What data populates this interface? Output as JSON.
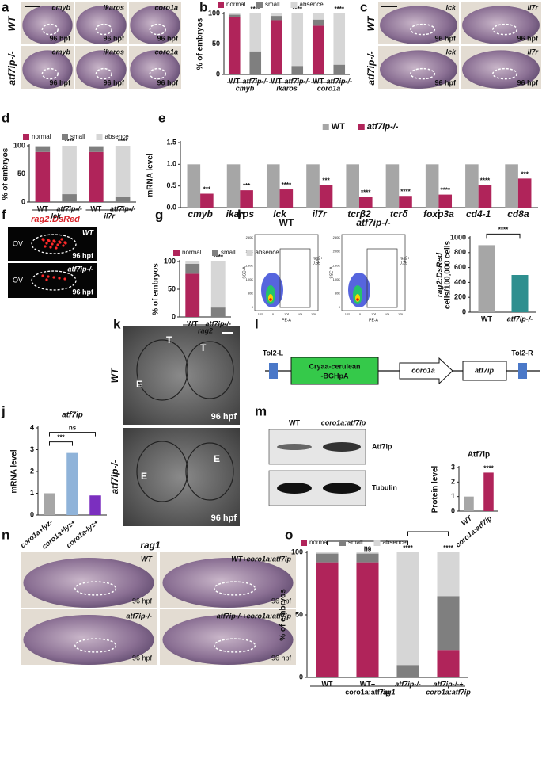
{
  "panels": {
    "a": {
      "label": "a",
      "rows": [
        "WT",
        "atf7ip-/-"
      ],
      "genes": [
        "cmyb",
        "ikaros",
        "coro1a"
      ],
      "stage": "96 hpf"
    },
    "c": {
      "label": "c",
      "rows": [
        "WT",
        "atf7ip-/-"
      ],
      "genes": [
        "lck",
        "il7r"
      ],
      "stage": "96 hpf"
    },
    "f": {
      "label": "f",
      "title": "rag2:DsRed",
      "rows": [
        "WT",
        "atf7ip-/-"
      ],
      "region": "OV",
      "stage": "96 hpf"
    },
    "h": {
      "label": "h",
      "plots": [
        "WT",
        "atf7ip-/-"
      ],
      "gate": "rag2+",
      "gate_values": [
        "0.55",
        "0.29"
      ],
      "ylabel": "SSC-A",
      "xlabel": "PE-A",
      "yticks": [
        "250K",
        "200K",
        "150K",
        "100K",
        "50K",
        "0"
      ],
      "xticks": [
        "-10³",
        "0",
        "10³",
        "10⁴",
        "10⁵"
      ]
    },
    "k": {
      "label": "k",
      "rows": [
        "WT",
        "atf7ip-/-"
      ],
      "top_marks": [
        "T",
        "T",
        "E"
      ],
      "bottom_marks": [
        "E",
        "E"
      ],
      "stage": "96 hpf"
    },
    "l": {
      "label": "l",
      "elements": [
        "Tol2-L",
        "Cryaa-cerulean",
        "-BGHpA",
        "coro1a",
        "atf7ip",
        "Tol2-R"
      ]
    },
    "m": {
      "label": "m",
      "lanes": [
        "WT",
        "coro1a:atf7ip"
      ],
      "bands": [
        "Atf7ip",
        "Tubulin"
      ]
    },
    "n": {
      "label": "n",
      "title": "rag1",
      "conditions": [
        "WT",
        "WT+coro1a:atf7ip",
        "atf7ip-/-",
        "atf7ip-/-+coro1a:atf7ip"
      ],
      "stage": "96 hpf"
    }
  },
  "chart_data": [
    {
      "type": "bar",
      "label": "b",
      "stacked": true,
      "legend": "top",
      "ylabel": "% of embryos",
      "ylim": [
        0,
        100
      ],
      "yticks": [
        0,
        50,
        100
      ],
      "categories": [
        "WT",
        "atf7ip-/-",
        "WT",
        "atf7ip-/-",
        "WT",
        "atf7ip-/-"
      ],
      "groups": [
        "cmyb",
        "ikaros",
        "coro1a"
      ],
      "series": [
        {
          "name": "normal",
          "color": "#b0245a",
          "values": [
            94,
            0,
            89,
            0,
            80,
            0
          ]
        },
        {
          "name": "small",
          "color": "#7f7f7f",
          "values": [
            4,
            38,
            7,
            14,
            10,
            16
          ],
          "annotations": [
            null,
            "****",
            null,
            "ns",
            null,
            "ns"
          ]
        },
        {
          "name": "absence",
          "color": "#d6d6d6",
          "values": [
            2,
            62,
            4,
            86,
            10,
            84
          ],
          "annotations": [
            null,
            "****",
            null,
            "****",
            null,
            "****"
          ]
        }
      ]
    },
    {
      "type": "bar",
      "label": "d",
      "stacked": true,
      "legend": "top",
      "ylabel": "% of embryos",
      "ylim": [
        0,
        100
      ],
      "yticks": [
        0,
        50,
        100
      ],
      "categories": [
        "WT",
        "atf7ip-/-",
        "WT",
        "atf7ip-/-"
      ],
      "groups": [
        "lck",
        "il7r"
      ],
      "series": [
        {
          "name": "normal",
          "color": "#b0245a",
          "values": [
            89,
            0,
            89,
            0
          ]
        },
        {
          "name": "small",
          "color": "#7f7f7f",
          "values": [
            10,
            14,
            10,
            9
          ],
          "annotations": [
            null,
            "ns",
            null,
            "ns"
          ]
        },
        {
          "name": "absence",
          "color": "#d6d6d6",
          "values": [
            1,
            86,
            1,
            91
          ],
          "annotations": [
            null,
            "****",
            null,
            "****"
          ]
        }
      ]
    },
    {
      "type": "bar",
      "label": "e",
      "legend": "top",
      "ylabel": "mRNA level",
      "ylim": [
        0,
        1.5
      ],
      "yticks": [
        {
          "value": 0,
          "label": "0.0"
        },
        0.5,
        {
          "value": 1,
          "label": "1.0"
        },
        1.5
      ],
      "categories": [
        "cmyb",
        "ikaros",
        "lck",
        "il7r",
        "tcrβ2",
        "tcrδ",
        "foxp3a",
        "cd4-1",
        "cd8a"
      ],
      "series": [
        {
          "name": "WT",
          "color": "#a6a6a6",
          "values": [
            1,
            1,
            1,
            1,
            1,
            1,
            1,
            1,
            1
          ]
        },
        {
          "name": "atf7ip-/-",
          "color": "#b0245a",
          "values": [
            0.32,
            0.4,
            0.42,
            0.52,
            0.25,
            0.27,
            0.3,
            0.52,
            0.67
          ],
          "annotations": [
            "***",
            "***",
            "****",
            "***",
            "****",
            "****",
            "****",
            "****",
            "***"
          ]
        }
      ]
    },
    {
      "type": "bar",
      "label": "g",
      "stacked": true,
      "legend": "top",
      "ylabel": "% of embryos",
      "ylim": [
        0,
        100
      ],
      "yticks": [
        0,
        50,
        100
      ],
      "categories": [
        "WT",
        "atf7ip-/-"
      ],
      "groups": [
        "rag2"
      ],
      "series": [
        {
          "name": "normal",
          "color": "#b0245a",
          "values": [
            78,
            0
          ]
        },
        {
          "name": "small",
          "color": "#7f7f7f",
          "values": [
            18,
            17
          ],
          "annotations": [
            null,
            "ns"
          ]
        },
        {
          "name": "absence",
          "color": "#d6d6d6",
          "values": [
            4,
            83
          ],
          "annotations": [
            null,
            "****"
          ]
        }
      ]
    },
    {
      "type": "bar",
      "label": "i",
      "ylabel": [
        "rag2:DsRed",
        "cells/100,000 cells"
      ],
      "ylim": [
        0,
        1000
      ],
      "yticks": [
        0,
        200,
        400,
        600,
        800,
        1000
      ],
      "categories": [
        "WT",
        "atf7ip-/-"
      ],
      "comparisons": [
        {
          "pair": [
            0,
            1
          ],
          "text": "****"
        }
      ],
      "series": [
        {
          "colors": [
            "#a6a6a6",
            "#2e8f8f"
          ],
          "values": [
            900,
            500
          ]
        }
      ]
    },
    {
      "type": "bar",
      "label": "j",
      "title": "atf7ip",
      "ylabel": "mRNA level",
      "ylim": [
        0,
        4
      ],
      "yticks": [
        0,
        1,
        2,
        3,
        4
      ],
      "categories": [
        "coro1a+lyz-",
        "coro1a+lyz+",
        "coro1a-lyz+"
      ],
      "comparisons": [
        {
          "pair": [
            0,
            1
          ],
          "text": "***"
        },
        {
          "pair": [
            0,
            2
          ],
          "text": "ns"
        }
      ],
      "series": [
        {
          "colors": [
            "#a6a6a6",
            "#8fb3d9",
            "#7b2fbf"
          ],
          "values": [
            1,
            2.85,
            0.9
          ]
        }
      ]
    },
    {
      "type": "bar",
      "label": "m",
      "title": "Atf7ip",
      "ylabel": "Protein level",
      "ylim": [
        0,
        3
      ],
      "yticks": [
        0,
        1,
        2,
        3
      ],
      "categories": [
        "WT",
        "coro1a:atf7ip"
      ],
      "series": [
        {
          "colors": [
            "#a6a6a6",
            "#b0245a"
          ],
          "values": [
            1,
            2.65
          ],
          "annotations": [
            null,
            "****"
          ]
        }
      ]
    },
    {
      "type": "bar",
      "label": "o",
      "stacked": true,
      "legend": "top",
      "ylabel": "% of embryos",
      "ylim": [
        0,
        100
      ],
      "yticks": [
        0,
        50,
        100
      ],
      "categories": [
        "WT",
        [
          "WT+",
          "coro1a:atf7ip"
        ],
        "atf7ip-/-",
        [
          "atf7ip-/-+",
          "coro1a:atf7ip"
        ]
      ],
      "groups": [
        "rag1"
      ],
      "comparisons": [
        {
          "pair": [
            0,
            2
          ]
        },
        {
          "pair": [
            2,
            3
          ]
        }
      ],
      "series": [
        {
          "name": "normal",
          "color": "#b0245a",
          "values": [
            92,
            92,
            0,
            22
          ],
          "annotations": [
            null,
            null,
            null,
            "***"
          ]
        },
        {
          "name": "small",
          "color": "#7f7f7f",
          "values": [
            7,
            7,
            10,
            43
          ],
          "annotations": [
            null,
            "ns",
            "ns",
            "****"
          ]
        },
        {
          "name": "absence",
          "color": "#d6d6d6",
          "values": [
            1,
            1,
            90,
            35
          ],
          "annotations": [
            null,
            "ns",
            "****",
            "****"
          ]
        }
      ]
    }
  ]
}
